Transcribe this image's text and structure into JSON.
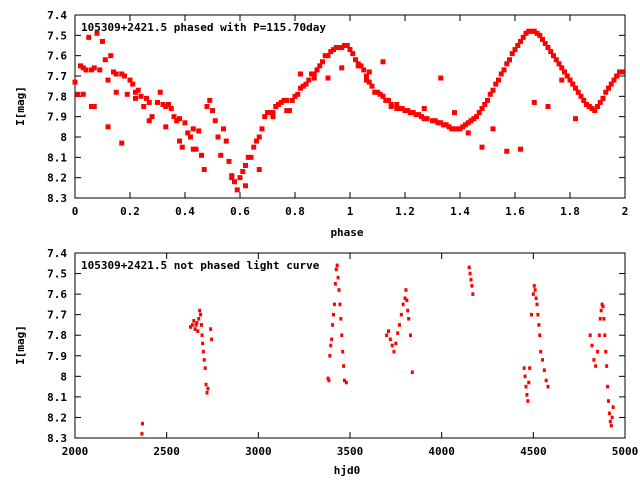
{
  "chart_data": [
    {
      "type": "scatter",
      "title": "105309+2421.5 phased with P=115.70day",
      "xlabel": "phase",
      "ylabel": "I[mag]",
      "xlim": [
        0,
        2
      ],
      "ylim": [
        8.3,
        7.4
      ],
      "y_inverted": true,
      "xticks": [
        "0",
        "0.2",
        "0.4",
        "0.6",
        "0.8",
        "1",
        "1.2",
        "1.4",
        "1.6",
        "1.8",
        "2"
      ],
      "yticks": [
        "7.4",
        "7.5",
        "7.6",
        "7.7",
        "7.8",
        "7.9",
        "8",
        "8.1",
        "8.2",
        "8.3"
      ],
      "color": "#ff0000",
      "x": [
        0.0,
        0.01,
        0.02,
        0.03,
        0.04,
        0.05,
        0.06,
        0.06,
        0.07,
        0.08,
        0.09,
        0.1,
        0.11,
        0.12,
        0.13,
        0.14,
        0.15,
        0.15,
        0.17,
        0.18,
        0.19,
        0.2,
        0.21,
        0.22,
        0.23,
        0.24,
        0.25,
        0.26,
        0.27,
        0.28,
        0.3,
        0.31,
        0.32,
        0.33,
        0.34,
        0.35,
        0.36,
        0.37,
        0.38,
        0.39,
        0.4,
        0.41,
        0.42,
        0.43,
        0.44,
        0.45,
        0.46,
        0.47,
        0.48,
        0.49,
        0.5,
        0.51,
        0.52,
        0.53,
        0.54,
        0.55,
        0.56,
        0.57,
        0.58,
        0.59,
        0.6,
        0.61,
        0.62,
        0.63,
        0.64,
        0.65,
        0.66,
        0.67,
        0.68,
        0.69,
        0.7,
        0.71,
        0.72,
        0.73,
        0.74,
        0.75,
        0.76,
        0.77,
        0.78,
        0.79,
        0.8,
        0.81,
        0.82,
        0.83,
        0.84,
        0.85,
        0.86,
        0.87,
        0.88,
        0.89,
        0.9,
        0.91,
        0.92,
        0.93,
        0.94,
        0.95,
        0.96,
        0.97,
        0.98,
        0.99,
        1.0,
        1.01,
        1.02,
        1.03,
        1.04,
        1.05,
        1.06,
        1.06,
        1.07,
        1.08,
        1.09,
        1.1,
        1.11,
        1.12,
        1.13,
        1.14,
        1.15,
        1.15,
        1.17,
        1.18,
        1.19,
        1.2,
        1.21,
        1.22,
        1.23,
        1.24,
        1.25,
        1.26,
        1.27,
        1.28,
        1.3,
        1.31,
        1.32,
        1.33,
        1.34,
        1.35,
        1.36,
        1.37,
        1.38,
        1.39,
        1.4,
        1.41,
        1.42,
        1.43,
        1.44,
        1.45,
        1.46,
        1.47,
        1.48,
        1.49,
        1.5,
        1.51,
        1.52,
        1.53,
        1.54,
        1.55,
        1.56,
        1.57,
        1.58,
        1.59,
        1.6,
        1.61,
        1.62,
        1.63,
        1.64,
        1.65,
        1.66,
        1.67,
        1.68,
        1.69,
        1.7,
        1.71,
        1.72,
        1.73,
        1.74,
        1.75,
        1.76,
        1.77,
        1.78,
        1.79,
        1.8,
        1.81,
        1.82,
        1.83,
        1.84,
        1.85,
        1.86,
        1.87,
        1.88,
        1.89,
        1.9,
        1.91,
        1.92,
        1.93,
        1.94,
        1.95,
        1.96,
        1.97,
        1.98,
        1.99,
        0.03,
        0.07,
        0.12,
        0.17,
        0.22,
        0.27,
        0.33,
        0.38,
        0.43,
        0.48,
        0.52,
        0.57,
        0.62,
        0.67,
        0.72,
        0.77,
        0.82,
        0.87,
        0.92,
        0.97,
        1.03,
        1.07,
        1.12,
        1.17,
        1.22,
        1.27,
        1.33,
        1.38,
        1.43,
        1.48,
        1.52,
        1.57,
        1.62,
        1.67,
        1.72,
        1.77,
        1.82,
        1.87,
        1.92,
        1.97
      ],
      "y": [
        7.73,
        7.79,
        7.65,
        7.79,
        7.67,
        7.51,
        7.67,
        7.85,
        7.66,
        7.49,
        7.67,
        7.53,
        7.62,
        7.72,
        7.6,
        7.68,
        7.78,
        7.69,
        7.69,
        7.7,
        7.79,
        7.72,
        7.74,
        7.78,
        7.77,
        7.8,
        7.85,
        7.81,
        7.83,
        7.9,
        7.83,
        7.78,
        7.84,
        7.85,
        7.84,
        7.86,
        7.9,
        7.92,
        7.91,
        8.05,
        7.93,
        7.98,
        8.0,
        7.96,
        8.06,
        7.97,
        8.09,
        8.16,
        7.85,
        7.82,
        7.87,
        7.92,
        8.0,
        8.09,
        7.96,
        8.02,
        8.12,
        8.19,
        8.22,
        8.26,
        8.2,
        8.17,
        8.14,
        8.1,
        8.1,
        8.05,
        8.02,
        8.0,
        7.96,
        7.9,
        7.88,
        7.88,
        7.88,
        7.85,
        7.84,
        7.83,
        7.82,
        7.87,
        7.87,
        7.82,
        7.8,
        7.79,
        7.76,
        7.75,
        7.74,
        7.72,
        7.69,
        7.69,
        7.67,
        7.65,
        7.63,
        7.6,
        7.6,
        7.58,
        7.57,
        7.56,
        7.56,
        7.56,
        7.55,
        7.55,
        7.57,
        7.59,
        7.62,
        7.64,
        7.65,
        7.67,
        7.7,
        7.72,
        7.73,
        7.75,
        7.78,
        7.78,
        7.79,
        7.8,
        7.82,
        7.82,
        7.84,
        7.85,
        7.86,
        7.86,
        7.86,
        7.87,
        7.87,
        7.88,
        7.88,
        7.89,
        7.89,
        7.9,
        7.91,
        7.91,
        7.92,
        7.92,
        7.93,
        7.93,
        7.94,
        7.94,
        7.95,
        7.96,
        7.96,
        7.96,
        7.96,
        7.95,
        7.94,
        7.93,
        7.92,
        7.91,
        7.9,
        7.88,
        7.86,
        7.84,
        7.82,
        7.79,
        7.77,
        7.74,
        7.72,
        7.69,
        7.67,
        7.64,
        7.62,
        7.59,
        7.57,
        7.55,
        7.53,
        7.51,
        7.49,
        7.48,
        7.48,
        7.48,
        7.49,
        7.5,
        7.52,
        7.54,
        7.56,
        7.58,
        7.6,
        7.62,
        7.64,
        7.66,
        7.68,
        7.7,
        7.72,
        7.74,
        7.76,
        7.78,
        7.8,
        7.82,
        7.84,
        7.85,
        7.86,
        7.87,
        7.85,
        7.83,
        7.81,
        7.78,
        7.76,
        7.74,
        7.72,
        7.7,
        7.68,
        7.68,
        7.66,
        7.85,
        7.95,
        8.03,
        7.81,
        7.92,
        7.95,
        8.02,
        8.06,
        7.85,
        8.0,
        8.2,
        8.24,
        8.16,
        7.9,
        7.82,
        7.69,
        7.71,
        7.71,
        7.66,
        7.65,
        7.68,
        7.63,
        7.84,
        7.88,
        7.86,
        7.71,
        7.88,
        7.98,
        8.05,
        7.96,
        8.07,
        8.06,
        7.83,
        7.85,
        7.72,
        7.91,
        7.85,
        7.81,
        7.7
      ],
      "marker": "big"
    },
    {
      "type": "scatter",
      "title": "105309+2421.5 not phased light curve",
      "xlabel": "hjd0",
      "ylabel": "I[mag]",
      "xlim": [
        2000,
        5000
      ],
      "ylim": [
        8.3,
        7.4
      ],
      "y_inverted": true,
      "xticks": [
        "2000",
        "2500",
        "3000",
        "3500",
        "4000",
        "4500",
        "5000"
      ],
      "yticks": [
        "7.4",
        "7.5",
        "7.6",
        "7.7",
        "7.8",
        "7.9",
        "8",
        "8.1",
        "8.2",
        "8.3"
      ],
      "color": "#ff0000",
      "x": [
        2365,
        2368,
        2630,
        2640,
        2648,
        2655,
        2660,
        2665,
        2670,
        2675,
        2680,
        2685,
        2690,
        2693,
        2696,
        2700,
        2705,
        2710,
        2715,
        2720,
        2725,
        2740,
        2745,
        3380,
        3385,
        3390,
        3395,
        3400,
        3405,
        3410,
        3415,
        3420,
        3425,
        3430,
        3435,
        3440,
        3445,
        3450,
        3455,
        3460,
        3465,
        3470,
        3480,
        3700,
        3710,
        3720,
        3730,
        3740,
        3750,
        3760,
        3770,
        3780,
        3790,
        3800,
        3805,
        3810,
        3815,
        3820,
        3830,
        3840,
        4150,
        4155,
        4160,
        4165,
        4170,
        4450,
        4455,
        4460,
        4465,
        4470,
        4475,
        4480,
        4490,
        4500,
        4505,
        4510,
        4515,
        4520,
        4525,
        4530,
        4535,
        4540,
        4550,
        4560,
        4570,
        4580,
        4810,
        4820,
        4830,
        4840,
        4850,
        4860,
        4865,
        4870,
        4875,
        4880,
        4885,
        4890,
        4895,
        4900,
        4905,
        4910,
        4915,
        4920,
        4925,
        4930,
        4935
      ],
      "y": [
        8.28,
        8.23,
        7.76,
        7.75,
        7.73,
        7.77,
        7.75,
        7.74,
        7.78,
        7.72,
        7.68,
        7.7,
        7.75,
        7.8,
        7.84,
        7.88,
        7.92,
        7.96,
        8.04,
        8.08,
        8.06,
        7.77,
        7.82,
        8.01,
        8.02,
        7.9,
        7.85,
        7.82,
        7.75,
        7.7,
        7.65,
        7.55,
        7.48,
        7.46,
        7.52,
        7.58,
        7.65,
        7.72,
        7.8,
        7.88,
        7.95,
        8.02,
        8.03,
        7.8,
        7.78,
        7.82,
        7.85,
        7.88,
        7.84,
        7.79,
        7.75,
        7.7,
        7.65,
        7.62,
        7.58,
        7.63,
        7.68,
        7.72,
        7.8,
        7.98,
        7.47,
        7.5,
        7.53,
        7.56,
        7.6,
        7.96,
        8.0,
        8.05,
        8.09,
        8.12,
        8.03,
        7.96,
        7.7,
        7.6,
        7.56,
        7.58,
        7.62,
        7.65,
        7.7,
        7.75,
        7.8,
        7.88,
        7.92,
        7.97,
        8.02,
        8.05,
        7.8,
        7.85,
        7.92,
        7.95,
        7.88,
        7.8,
        7.72,
        7.68,
        7.65,
        7.66,
        7.72,
        7.8,
        7.88,
        7.95,
        8.05,
        8.12,
        8.18,
        8.22,
        8.24,
        8.2,
        8.15
      ],
      "marker": "small"
    }
  ]
}
